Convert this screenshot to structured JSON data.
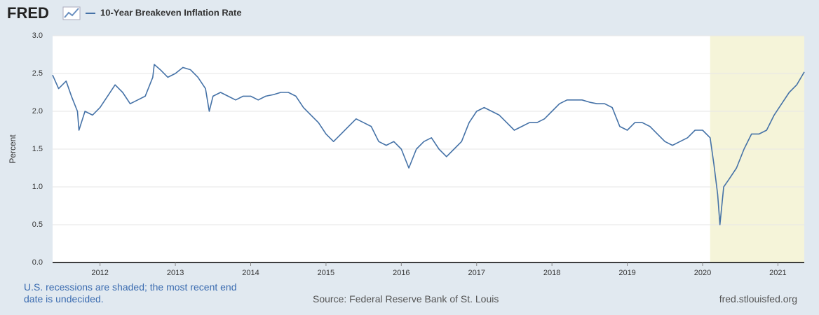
{
  "chart_data": {
    "type": "line",
    "logo": "FRED",
    "y_label": "Percent",
    "note": "U.S. recessions are shaded; the most recent end date is undecided.",
    "source": "Source: Federal Reserve Bank of St. Louis",
    "url": "fred.stlouisfed.org",
    "recession": {
      "start": 2020.1,
      "end": 2021.35,
      "color": "#f5f4d9"
    },
    "xlim": [
      2011.37,
      2021.35
    ],
    "xticks": [
      2012,
      2013,
      2014,
      2015,
      2016,
      2017,
      2018,
      2019,
      2020,
      2021
    ],
    "ylim": [
      0,
      3
    ],
    "yticks": [
      {
        "value": 0,
        "label": "0.0"
      },
      0.5,
      {
        "value": 1,
        "label": "1.0"
      },
      1.5,
      {
        "value": 2,
        "label": "2.0"
      },
      2.5,
      {
        "value": 3,
        "label": "3.0"
      }
    ],
    "grid": true,
    "x": [
      2011.37,
      2011.45,
      2011.55,
      2011.62,
      2011.7,
      2011.72,
      2011.8,
      2011.9,
      2012.0,
      2012.1,
      2012.2,
      2012.3,
      2012.4,
      2012.5,
      2012.6,
      2012.7,
      2012.72,
      2012.8,
      2012.9,
      2013.0,
      2013.1,
      2013.2,
      2013.3,
      2013.4,
      2013.45,
      2013.5,
      2013.6,
      2013.7,
      2013.8,
      2013.9,
      2014.0,
      2014.1,
      2014.2,
      2014.3,
      2014.4,
      2014.5,
      2014.6,
      2014.7,
      2014.8,
      2014.9,
      2015.0,
      2015.1,
      2015.2,
      2015.3,
      2015.4,
      2015.5,
      2015.6,
      2015.7,
      2015.8,
      2015.9,
      2016.0,
      2016.1,
      2016.2,
      2016.3,
      2016.4,
      2016.5,
      2016.6,
      2016.7,
      2016.8,
      2016.9,
      2017.0,
      2017.1,
      2017.2,
      2017.3,
      2017.4,
      2017.5,
      2017.6,
      2017.7,
      2017.8,
      2017.9,
      2018.0,
      2018.1,
      2018.2,
      2018.3,
      2018.4,
      2018.5,
      2018.6,
      2018.7,
      2018.8,
      2018.9,
      2019.0,
      2019.1,
      2019.2,
      2019.3,
      2019.4,
      2019.5,
      2019.6,
      2019.7,
      2019.8,
      2019.9,
      2020.0,
      2020.1,
      2020.15,
      2020.2,
      2020.23,
      2020.28,
      2020.35,
      2020.45,
      2020.55,
      2020.65,
      2020.75,
      2020.85,
      2020.95,
      2021.05,
      2021.15,
      2021.25,
      2021.35
    ],
    "series": [
      {
        "name": "10-Year Breakeven Inflation Rate",
        "color": "#4572a7",
        "values": [
          2.48,
          2.3,
          2.4,
          2.2,
          2.0,
          1.75,
          2.0,
          1.95,
          2.05,
          2.2,
          2.35,
          2.25,
          2.1,
          2.15,
          2.2,
          2.45,
          2.62,
          2.55,
          2.45,
          2.5,
          2.58,
          2.55,
          2.45,
          2.3,
          2.0,
          2.2,
          2.25,
          2.2,
          2.15,
          2.2,
          2.2,
          2.15,
          2.2,
          2.22,
          2.25,
          2.25,
          2.2,
          2.05,
          1.95,
          1.85,
          1.7,
          1.6,
          1.7,
          1.8,
          1.9,
          1.85,
          1.8,
          1.6,
          1.55,
          1.6,
          1.5,
          1.25,
          1.5,
          1.6,
          1.65,
          1.5,
          1.4,
          1.5,
          1.6,
          1.85,
          2.0,
          2.05,
          2.0,
          1.95,
          1.85,
          1.75,
          1.8,
          1.85,
          1.85,
          1.9,
          2.0,
          2.1,
          2.15,
          2.15,
          2.15,
          2.12,
          2.1,
          2.1,
          2.05,
          1.8,
          1.75,
          1.85,
          1.85,
          1.8,
          1.7,
          1.6,
          1.55,
          1.6,
          1.65,
          1.75,
          1.75,
          1.65,
          1.3,
          0.9,
          0.5,
          1.0,
          1.1,
          1.25,
          1.5,
          1.7,
          1.7,
          1.75,
          1.95,
          2.1,
          2.25,
          2.35,
          2.52
        ]
      }
    ]
  }
}
